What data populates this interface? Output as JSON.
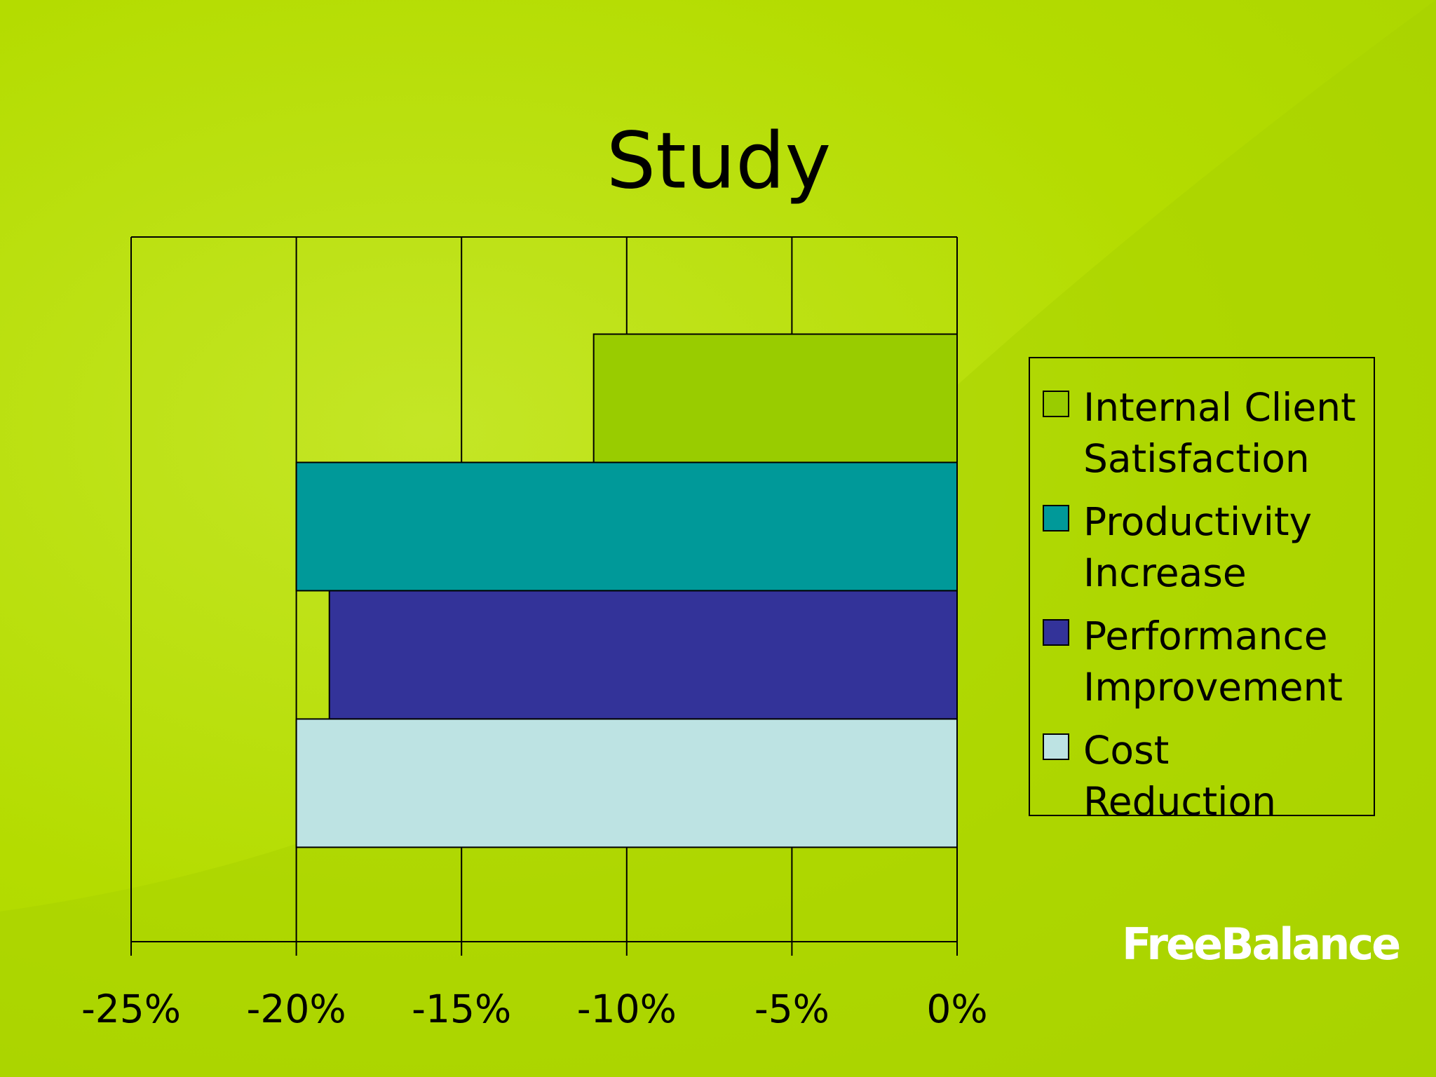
{
  "chart_data": {
    "type": "bar",
    "orientation": "horizontal",
    "title": "Study",
    "categories": [
      null
    ],
    "series": [
      {
        "name": "Internal Client Satisfaction",
        "color": "#99cc00",
        "values": [
          -11
        ]
      },
      {
        "name": "Productivity Increase",
        "color": "#009999",
        "values": [
          -20
        ]
      },
      {
        "name": "Performance Improvement",
        "color": "#333399",
        "values": [
          -19
        ]
      },
      {
        "name": "Cost Reduction",
        "color": "#bde3e3",
        "values": [
          -20
        ]
      }
    ],
    "xlim": [
      -25,
      0
    ],
    "xticks": [
      {
        "value": -25,
        "label": "-25%"
      },
      {
        "value": -20,
        "label": "-20%"
      },
      {
        "value": -15,
        "label": "-15%"
      },
      {
        "value": -10,
        "label": "-10%"
      },
      {
        "value": -5,
        "label": "-5%"
      },
      {
        "value": 0,
        "label": "0%"
      }
    ],
    "grid": true,
    "legend": "right"
  },
  "logo": "FreeBalance"
}
